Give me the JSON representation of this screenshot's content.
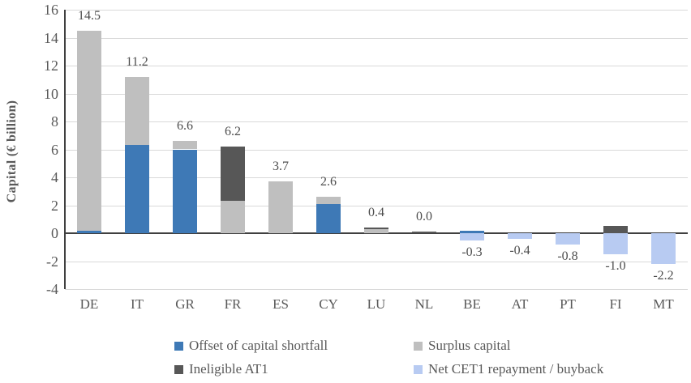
{
  "chart_data": {
    "type": "bar",
    "stacked": true,
    "ylabel": "Capital (€ billion)",
    "ylim": [
      -4,
      16
    ],
    "y_ticks": [
      16,
      14,
      12,
      10,
      8,
      6,
      4,
      2,
      0,
      -2,
      -4
    ],
    "grid": true,
    "legend_position": "bottom",
    "categories": [
      "DE",
      "IT",
      "GR",
      "FR",
      "ES",
      "CY",
      "LU",
      "NL",
      "BE",
      "AT",
      "PT",
      "FI",
      "MT"
    ],
    "series": [
      {
        "name": "Offset of capital shortfall",
        "color": "#3E79B6",
        "values": [
          0.2,
          6.3,
          6.0,
          0,
          0,
          2.1,
          0,
          0,
          0.2,
          0,
          0,
          0,
          0
        ]
      },
      {
        "name": "Surplus capital",
        "color": "#BFBFBF",
        "values": [
          14.3,
          4.9,
          0.6,
          2.3,
          3.7,
          0.5,
          0.3,
          0,
          0,
          0,
          0,
          0,
          0
        ]
      },
      {
        "name": "Ineligible AT1",
        "color": "#575757",
        "values": [
          0,
          0,
          0,
          3.9,
          0,
          0,
          0.1,
          0.1,
          0,
          0,
          0,
          0.5,
          0
        ]
      },
      {
        "name": "Net CET1 repayment / buyback",
        "color": "#B8CBF2",
        "values": [
          0,
          0,
          0,
          0,
          0,
          0,
          0,
          0,
          -0.5,
          -0.4,
          -0.8,
          -1.5,
          -2.2
        ]
      }
    ],
    "total_labels": [
      "14.5",
      "11.2",
      "6.6",
      "6.2",
      "3.7",
      "2.6",
      "0.4",
      "0.0",
      "-0.3",
      "-0.4",
      "-0.8",
      "-1.0",
      "-2.2"
    ]
  },
  "colors": {
    "grid": "#d9d9d9",
    "axis": "#404040",
    "tick_text": "#595959",
    "data_label_text": "#4d4d4d"
  }
}
